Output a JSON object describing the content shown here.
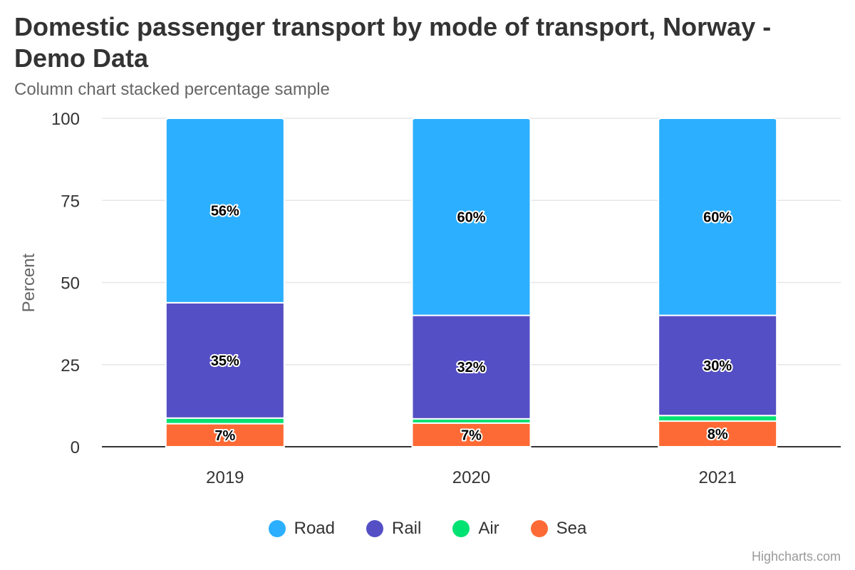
{
  "chart_data": {
    "type": "bar",
    "stacking": "percent",
    "title": "Domestic passenger transport by mode of transport, Norway - Demo Data",
    "subtitle": "Column chart stacked percentage sample",
    "ylabel": "Percent",
    "xlabel": "",
    "ylim": [
      0,
      100
    ],
    "yticks": [
      0,
      25,
      50,
      75,
      100
    ],
    "categories": [
      "2019",
      "2020",
      "2021"
    ],
    "series": [
      {
        "name": "Road",
        "color": "#2caffe",
        "values": [
          56,
          60,
          60
        ],
        "labels": [
          "56%",
          "60%",
          "60%"
        ]
      },
      {
        "name": "Rail",
        "color": "#544fc5",
        "values": [
          35,
          31.5,
          30.5
        ],
        "labels": [
          "35%",
          "32%",
          "30%"
        ]
      },
      {
        "name": "Air",
        "color": "#00e272",
        "values": [
          1.7,
          1.3,
          1.7
        ],
        "labels": [
          "",
          "",
          ""
        ]
      },
      {
        "name": "Sea",
        "color": "#fe6a35",
        "values": [
          7,
          7.2,
          7.8
        ],
        "labels": [
          "7%",
          "7%",
          "8%"
        ]
      }
    ],
    "grid": true,
    "legend_position": "bottom-center"
  },
  "credits": "Highcharts.com"
}
